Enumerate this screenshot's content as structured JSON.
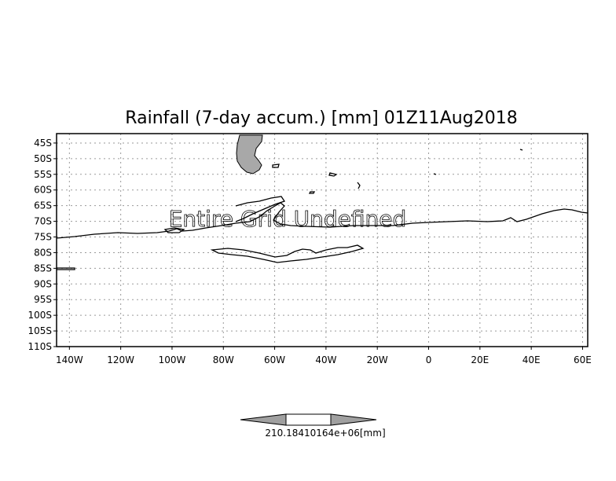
{
  "title": "Rainfall (7-day accum.) [mm] 01Z11Aug2018",
  "overlay_message": "Entire Grid Undefined",
  "map": {
    "lon_range": [
      -145,
      62
    ],
    "lat_range": [
      -110,
      -42
    ],
    "lat_ticks": [
      {
        "value": -45,
        "label": "45S"
      },
      {
        "value": -50,
        "label": "50S"
      },
      {
        "value": -55,
        "label": "55S"
      },
      {
        "value": -60,
        "label": "60S"
      },
      {
        "value": -65,
        "label": "65S"
      },
      {
        "value": -70,
        "label": "70S"
      },
      {
        "value": -75,
        "label": "75S"
      },
      {
        "value": -80,
        "label": "80S"
      },
      {
        "value": -85,
        "label": "85S"
      },
      {
        "value": -90,
        "label": "90S"
      },
      {
        "value": -95,
        "label": "95S"
      },
      {
        "value": -100,
        "label": "100S"
      },
      {
        "value": -105,
        "label": "105S"
      },
      {
        "value": -110,
        "label": "110S"
      }
    ],
    "lon_ticks": [
      {
        "value": -140,
        "label": "140W"
      },
      {
        "value": -120,
        "label": "120W"
      },
      {
        "value": -100,
        "label": "100W"
      },
      {
        "value": -80,
        "label": "80W"
      },
      {
        "value": -60,
        "label": "60W"
      },
      {
        "value": -40,
        "label": "40W"
      },
      {
        "value": -20,
        "label": "20W"
      },
      {
        "value": 0,
        "label": "0"
      },
      {
        "value": 20,
        "label": "20E"
      },
      {
        "value": 40,
        "label": "40E"
      },
      {
        "value": 60,
        "label": "60E"
      }
    ],
    "grid": true,
    "land_fill": "#a8a8a8",
    "frame_color": "#000000"
  },
  "colorbar": {
    "label": "210.18410164e+06[mm]",
    "colors": [
      "#a0a0a0",
      "#ffffff",
      "#a0a0a0"
    ]
  }
}
